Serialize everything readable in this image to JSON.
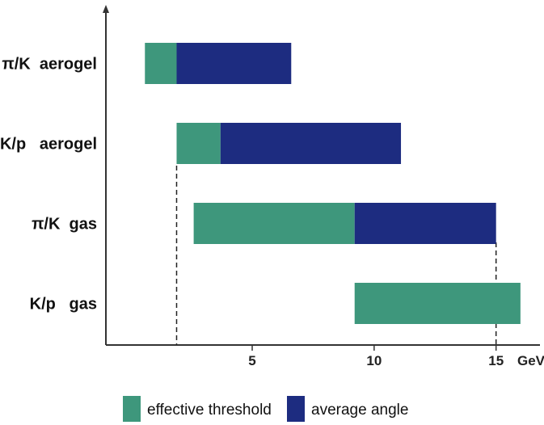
{
  "chart_data": {
    "type": "bar",
    "orientation": "horizontal-range",
    "categories": [
      "π/K  aerogel",
      "K/p   aerogel",
      "π/K  gas",
      "K/p   gas"
    ],
    "series": [
      {
        "name": "effective threshold",
        "color": "#3e977c",
        "ranges": [
          [
            0.6,
            1.9
          ],
          [
            1.9,
            3.7
          ],
          [
            2.6,
            9.2
          ],
          [
            9.2,
            16.0
          ]
        ]
      },
      {
        "name": "average angle",
        "color": "#1d2c80",
        "ranges": [
          [
            1.9,
            6.6
          ],
          [
            3.7,
            11.1
          ],
          [
            9.2,
            15.0
          ],
          null
        ]
      }
    ],
    "x_ticks": [
      5,
      10,
      15
    ],
    "x_unit": "GeV",
    "xlim": [
      -1.0,
      16.8
    ],
    "reference_lines_x": [
      1.9,
      15.0
    ],
    "grid": false,
    "legend_position": "bottom"
  }
}
